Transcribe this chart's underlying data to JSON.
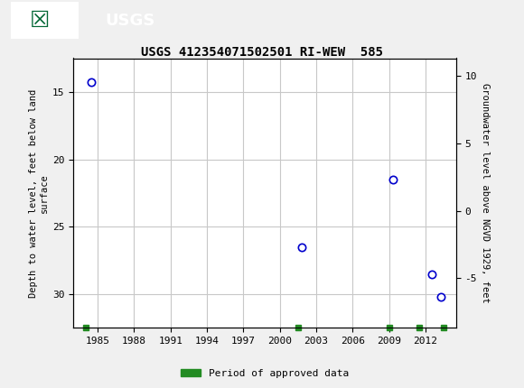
{
  "title": "USGS 412354071502501 RI-WEW  585",
  "ylabel_left": "Depth to water level, feet below land\nsurface",
  "ylabel_right": "Groundwater level above NGVD 1929, feet",
  "header_color": "#006633",
  "bg_color": "#f0f0f0",
  "plot_bg_color": "#ffffff",
  "grid_color": "#c8c8c8",
  "point_color": "#0000cc",
  "approved_color": "#228B22",
  "xlim": [
    1983.0,
    2014.5
  ],
  "ylim_left": [
    32.5,
    12.5
  ],
  "xticks": [
    1985,
    1988,
    1991,
    1994,
    1997,
    2000,
    2003,
    2006,
    2009,
    2012
  ],
  "yticks_left": [
    15,
    20,
    25,
    30
  ],
  "yticks_right": [
    -5,
    0,
    5,
    10
  ],
  "data_points_x": [
    1984.5,
    2001.8,
    2009.3,
    2012.5,
    2013.3
  ],
  "data_points_y": [
    14.3,
    26.5,
    21.5,
    28.5,
    30.2
  ],
  "approved_x": [
    1984.0,
    2001.5,
    2009.0,
    2011.5,
    2013.5
  ],
  "land_surface_elev": 23.82,
  "legend_label": "Period of approved data",
  "title_fontsize": 10,
  "tick_fontsize": 8,
  "label_fontsize": 7.5
}
